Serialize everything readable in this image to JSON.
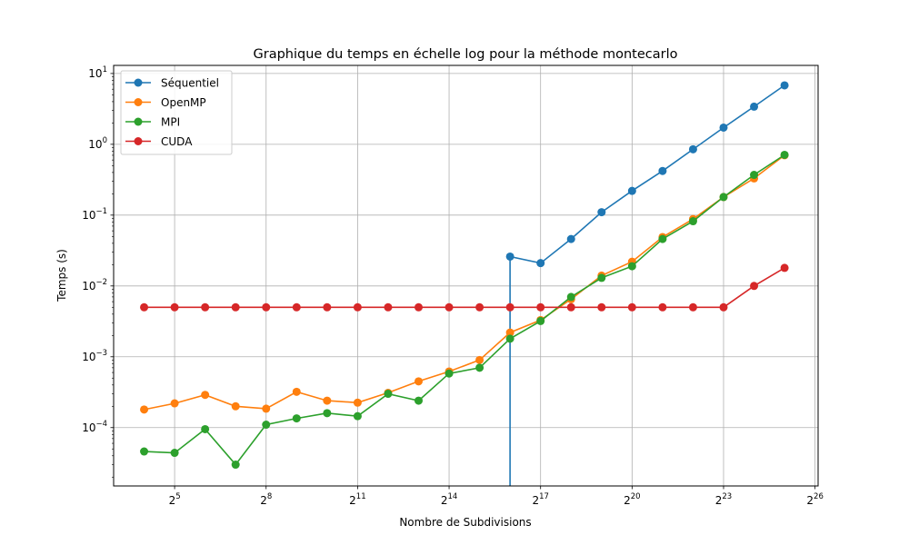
{
  "chart_data": {
    "type": "line",
    "title": "Graphique du temps en échelle log pour la méthode montecarlo",
    "xlabel": "Nombre de Subdivisions",
    "ylabel": "Temps (s)",
    "x_scale": "log2",
    "y_scale": "log10",
    "xlim_exponent": [
      3.0,
      26.1
    ],
    "ylim": [
      1.5e-05,
      13
    ],
    "grid": true,
    "legend_position": "upper-left",
    "x_ticks": [
      {
        "base": "2",
        "exp": "5",
        "value": 5
      },
      {
        "base": "2",
        "exp": "8",
        "value": 8
      },
      {
        "base": "2",
        "exp": "11",
        "value": 11
      },
      {
        "base": "2",
        "exp": "14",
        "value": 14
      },
      {
        "base": "2",
        "exp": "17",
        "value": 17
      },
      {
        "base": "2",
        "exp": "20",
        "value": 20
      },
      {
        "base": "2",
        "exp": "23",
        "value": 23
      },
      {
        "base": "2",
        "exp": "26",
        "value": 26
      }
    ],
    "y_ticks": [
      {
        "base": "10",
        "exp": "1",
        "value": 10
      },
      {
        "base": "10",
        "exp": "0",
        "value": 1
      },
      {
        "base": "10",
        "exp": "−1",
        "value": 0.1
      },
      {
        "base": "10",
        "exp": "−2",
        "value": 0.01
      },
      {
        "base": "10",
        "exp": "−3",
        "value": 0.001
      },
      {
        "base": "10",
        "exp": "−4",
        "value": 0.0001
      }
    ],
    "x_exponents": [
      4,
      5,
      6,
      7,
      8,
      9,
      10,
      11,
      12,
      13,
      14,
      15,
      16,
      17,
      18,
      19,
      20,
      21,
      22,
      23,
      24,
      25
    ],
    "series": [
      {
        "name": "Séquentiel",
        "color": "#1f77b4",
        "x_exponents": [
          16,
          17,
          18,
          19,
          20,
          21,
          22,
          23,
          24,
          25
        ],
        "values": [
          0.026,
          0.021,
          0.046,
          0.11,
          0.22,
          0.42,
          0.85,
          1.72,
          3.4,
          6.8
        ],
        "drop_to_bottom_at_exponent": 16
      },
      {
        "name": "OpenMP",
        "color": "#ff7f0e",
        "x_exponents": [
          4,
          5,
          6,
          7,
          8,
          9,
          10,
          11,
          12,
          13,
          14,
          15,
          16,
          17,
          18,
          19,
          20,
          21,
          22,
          23,
          24,
          25
        ],
        "values": [
          0.00018,
          0.00022,
          0.00029,
          0.0002,
          0.000185,
          0.00032,
          0.00024,
          0.000225,
          0.00031,
          0.00045,
          0.00062,
          0.0009,
          0.0022,
          0.0033,
          0.0065,
          0.014,
          0.022,
          0.049,
          0.088,
          0.18,
          0.33,
          0.7
        ]
      },
      {
        "name": "MPI",
        "color": "#2ca02c",
        "x_exponents": [
          4,
          5,
          6,
          7,
          8,
          9,
          10,
          11,
          12,
          13,
          14,
          15,
          16,
          17,
          18,
          19,
          20,
          21,
          22,
          23,
          24,
          25
        ],
        "values": [
          4.6e-05,
          4.4e-05,
          9.5e-05,
          3e-05,
          0.00011,
          0.000135,
          0.00016,
          0.000145,
          0.0003,
          0.00024,
          0.00058,
          0.0007,
          0.0018,
          0.0032,
          0.007,
          0.013,
          0.019,
          0.046,
          0.082,
          0.18,
          0.37,
          0.71
        ]
      },
      {
        "name": "CUDA",
        "color": "#d62728",
        "x_exponents": [
          4,
          5,
          6,
          7,
          8,
          9,
          10,
          11,
          12,
          13,
          14,
          15,
          16,
          17,
          18,
          19,
          20,
          21,
          22,
          23,
          24,
          25
        ],
        "values": [
          0.005,
          0.005,
          0.005,
          0.005,
          0.005,
          0.005,
          0.005,
          0.005,
          0.005,
          0.005,
          0.005,
          0.005,
          0.005,
          0.005,
          0.005,
          0.005,
          0.005,
          0.005,
          0.005,
          0.005,
          0.01,
          0.018
        ]
      }
    ]
  }
}
